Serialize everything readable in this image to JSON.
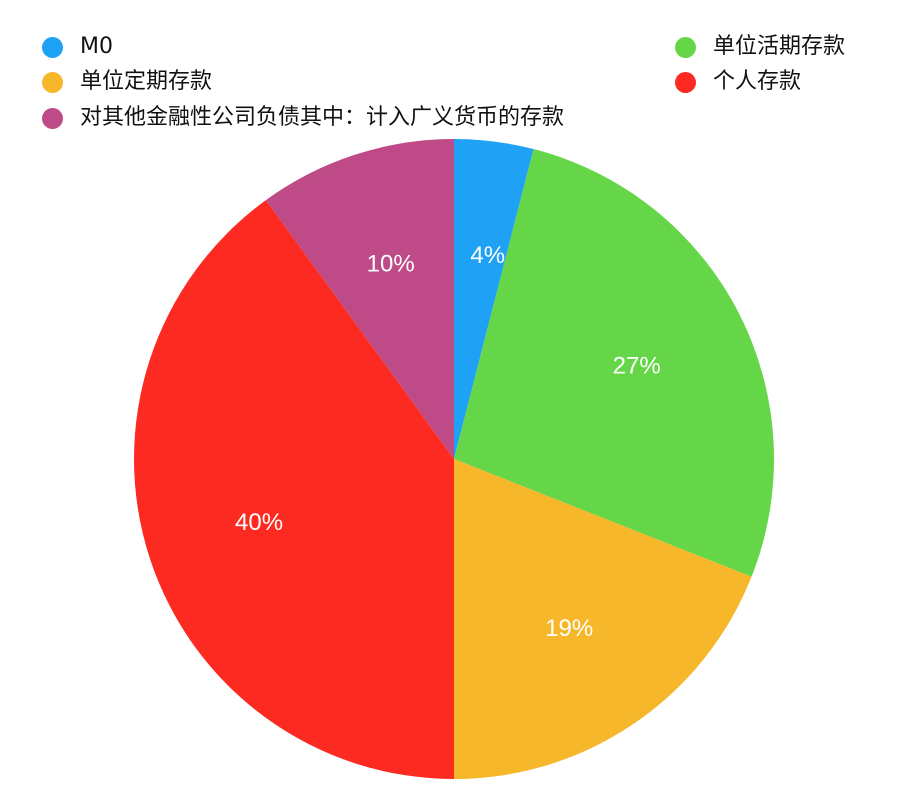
{
  "chart_data": {
    "type": "pie",
    "slices": [
      {
        "name": "M0",
        "value": 4,
        "label": "4%",
        "color": "#1fa1f6"
      },
      {
        "name": "单位活期存款",
        "value": 27,
        "label": "27%",
        "color": "#64d647"
      },
      {
        "name": "单位定期存款",
        "value": 19,
        "label": "19%",
        "color": "#f6b72b"
      },
      {
        "name": "个人存款",
        "value": 40,
        "label": "40%",
        "color": "#fc2a20"
      },
      {
        "name": "对其他金融性公司负债其中：计入广义货币的存款",
        "value": 10,
        "label": "10%",
        "color": "#be4a87"
      }
    ],
    "legend_position": "top"
  }
}
